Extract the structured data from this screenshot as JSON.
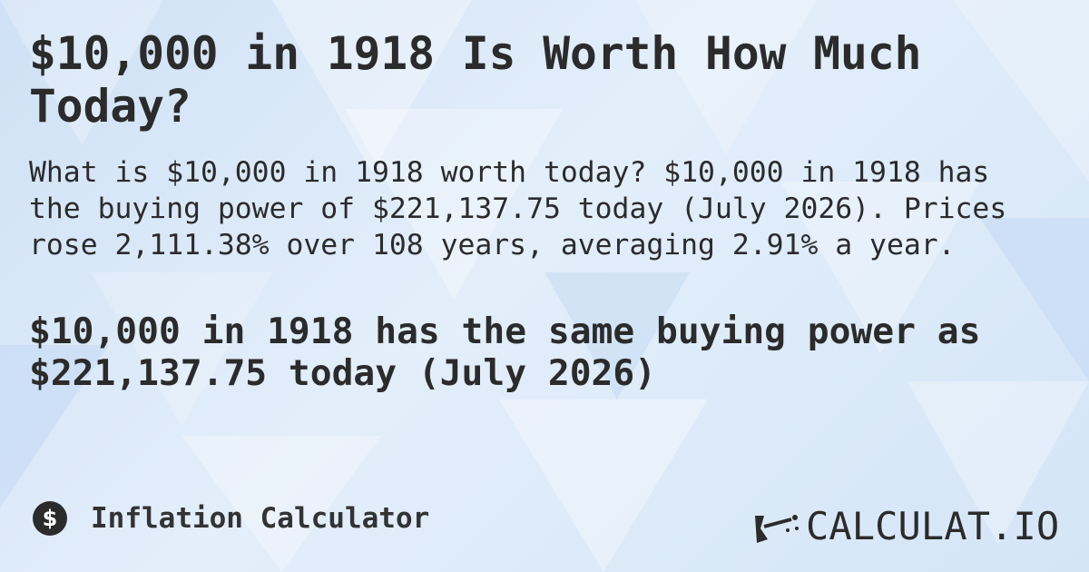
{
  "header": {
    "title": "$10,000 in 1918 Is Worth How Much Today?"
  },
  "body": {
    "description": "What is $10,000 in 1918 worth today? $10,000 in 1918 has the buying power of $221,137.75 today (July 2026). Prices rose 2,111.38% over 108 years, averaging 2.91% a year.",
    "highlight": "$10,000 in 1918 has the same buying power as $221,137.75 today (July 2026)"
  },
  "footer": {
    "category": "Inflation Calculator",
    "brand": "CALCULAT.IO"
  }
}
